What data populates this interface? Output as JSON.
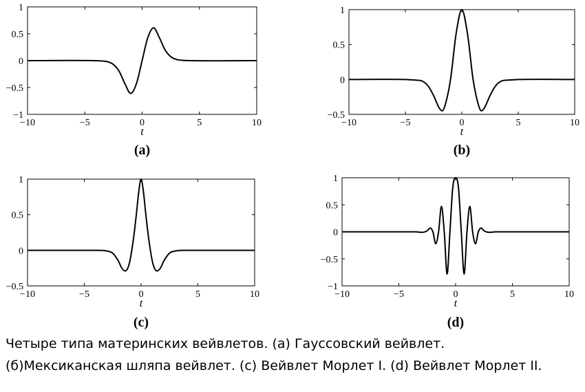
{
  "chart_data": [
    {
      "type": "line",
      "panel_label": "(a)",
      "xlabel": "t",
      "ylabel": "",
      "xlim": [
        -10,
        10
      ],
      "ylim": [
        -1,
        1
      ],
      "xticks": [
        "−10",
        "−5",
        "0",
        "5",
        "10"
      ],
      "yticks": [
        "1",
        "0.5",
        "0",
        "−0.5",
        "−1"
      ],
      "series": [
        {
          "x": [
            -10,
            -4,
            -3.5,
            -3,
            -2.5,
            -2,
            -1.5,
            -1,
            -0.5,
            0,
            0.5,
            1,
            1.5,
            2,
            2.5,
            3,
            3.5,
            4,
            10
          ],
          "y": [
            0,
            -0.001,
            -0.006,
            -0.022,
            -0.073,
            -0.2,
            -0.43,
            -0.61,
            -0.43,
            0,
            0.43,
            0.61,
            0.43,
            0.2,
            0.073,
            0.022,
            0.006,
            0.001,
            0
          ]
        }
      ]
    },
    {
      "type": "line",
      "panel_label": "(b)",
      "xlabel": "t",
      "ylabel": "",
      "xlim": [
        -10,
        10
      ],
      "ylim": [
        -0.5,
        1
      ],
      "xticks": [
        "−10",
        "−5",
        "0",
        "5",
        "10"
      ],
      "yticks": [
        "1",
        "0.5",
        "0",
        "−0.5"
      ],
      "series": [
        {
          "x": [
            -10,
            -5,
            -4.5,
            -4,
            -3.5,
            -3,
            -2.5,
            -2,
            -1.73,
            -1.5,
            -1,
            -0.5,
            0,
            0.5,
            1,
            1.5,
            1.73,
            2,
            2.5,
            3,
            3.5,
            4,
            4.5,
            5,
            10
          ],
          "y": [
            0,
            -0.001,
            -0.005,
            -0.01,
            -0.024,
            -0.09,
            -0.23,
            -0.41,
            -0.45,
            -0.38,
            0,
            0.66,
            1,
            0.66,
            0,
            -0.38,
            -0.45,
            -0.41,
            -0.23,
            -0.09,
            -0.024,
            -0.01,
            -0.005,
            -0.001,
            0
          ]
        }
      ]
    },
    {
      "type": "line",
      "panel_label": "(c)",
      "xlabel": "t",
      "ylabel": "",
      "xlim": [
        -10,
        10
      ],
      "ylim": [
        -0.5,
        1
      ],
      "xticks": [
        "−10",
        "−5",
        "0",
        "5",
        "10"
      ],
      "yticks": [
        "1",
        "0.5",
        "0",
        "−0.5"
      ],
      "series": [
        {
          "x": [
            -10,
            -4,
            -3.5,
            -3,
            -2.5,
            -2,
            -1.7,
            -1.4,
            -1.2,
            -1,
            -0.8,
            -0.6,
            -0.4,
            -0.2,
            0,
            0.2,
            0.4,
            0.6,
            0.8,
            1,
            1.2,
            1.4,
            1.7,
            2,
            2.5,
            3,
            3.5,
            4,
            10
          ],
          "y": [
            0,
            0,
            -0.001,
            -0.01,
            -0.04,
            -0.15,
            -0.25,
            -0.29,
            -0.26,
            -0.16,
            0.02,
            0.25,
            0.53,
            0.83,
            1,
            0.83,
            0.53,
            0.25,
            0.02,
            -0.16,
            -0.26,
            -0.29,
            -0.25,
            -0.15,
            -0.04,
            -0.01,
            -0.001,
            0,
            0
          ]
        }
      ]
    },
    {
      "type": "line",
      "panel_label": "(d)",
      "xlabel": "t",
      "ylabel": "",
      "xlim": [
        -10,
        10
      ],
      "ylim": [
        -1,
        1
      ],
      "xticks": [
        "−10",
        "−5",
        "0",
        "5",
        "10"
      ],
      "yticks": [
        "1",
        "0.5",
        "0",
        "−0.5",
        "−1"
      ],
      "series": [
        {
          "x": [
            -10,
            -3.5,
            -3,
            -2.5,
            -2.25,
            -2,
            -1.75,
            -1.5,
            -1.25,
            -1,
            -0.75,
            -0.5,
            -0.25,
            0,
            0.25,
            0.5,
            0.75,
            1,
            1.25,
            1.5,
            1.75,
            2,
            2.25,
            2.5,
            3,
            3.5,
            10
          ],
          "y": [
            0,
            0,
            -0.01,
            0.02,
            0.07,
            0,
            -0.22,
            0,
            0.47,
            0,
            -0.78,
            0,
            0.82,
            1,
            0.82,
            0,
            -0.78,
            0,
            0.47,
            0,
            -0.22,
            0,
            0.07,
            0.02,
            -0.01,
            0,
            0
          ]
        }
      ]
    }
  ],
  "caption": {
    "line1": "Четыре типа материнских вейвлетов. (a) Гауссовский вейвлет.",
    "line2": "(б)Мексиканская шляпа вейвлет. (с) Вейвлет Морлет I. (d) Вейвлет Морлет II."
  }
}
